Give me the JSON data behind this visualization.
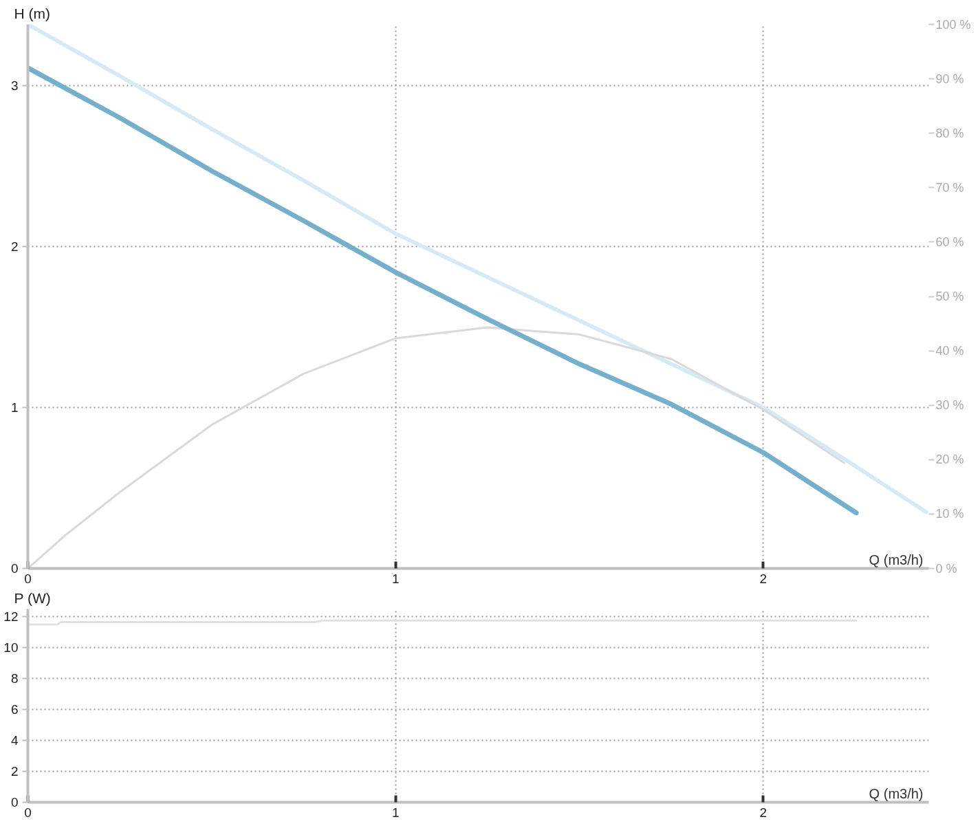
{
  "chart_data": [
    {
      "type": "line",
      "xlabel": "Q (m3/h)",
      "ylabel": "H (m)",
      "xlim": [
        0,
        2.45
      ],
      "xticks": [
        0,
        1,
        2
      ],
      "ylim": [
        0,
        3.38
      ],
      "yticks": [
        0,
        1,
        2,
        3
      ],
      "y2lim": [
        0,
        100
      ],
      "y2ticks": [
        {
          "value": 0,
          "label": "0 %"
        },
        {
          "value": 10,
          "label": "10 %"
        },
        {
          "value": 20,
          "label": "20 %"
        },
        {
          "value": 30,
          "label": "30 %"
        },
        {
          "value": 40,
          "label": "40 %"
        },
        {
          "value": 50,
          "label": "50 %"
        },
        {
          "value": 60,
          "label": "60 %"
        },
        {
          "value": 70,
          "label": "70 %"
        },
        {
          "value": 80,
          "label": "80 %"
        },
        {
          "value": 90,
          "label": "90 %"
        },
        {
          "value": 100,
          "label": "100 %"
        }
      ],
      "grid": true,
      "marker": "none",
      "series": [
        {
          "color": "#d6eaf5",
          "line_style": "dotted",
          "x": [
            0,
            0.25,
            0.5,
            0.75,
            1,
            1.25,
            1.5,
            1.75,
            2,
            2.2,
            2.443
          ],
          "values": [
            3.38,
            3.06,
            2.73,
            2.41,
            2.08,
            1.81,
            1.54,
            1.27,
            1.0,
            0.71,
            0.35
          ]
        },
        {
          "color": "#d9d9d9",
          "line_style": "solid",
          "axis": "y2",
          "x": [
            0,
            0.1,
            0.25,
            0.5,
            0.75,
            1,
            1.25,
            1.5,
            1.75,
            2,
            2.22
          ],
          "values": [
            0,
            6,
            14,
            26.4,
            35.8,
            42.3,
            44.3,
            43,
            38.5,
            29.2,
            19.4
          ]
        },
        {
          "color": "#74b0cb",
          "line_style": "solid",
          "x": [
            0,
            0.25,
            0.5,
            0.75,
            1,
            1.25,
            1.5,
            1.75,
            2,
            2.253
          ],
          "values": [
            3.11,
            2.8,
            2.47,
            2.16,
            1.84,
            1.55,
            1.27,
            1.02,
            0.72,
            0.345
          ]
        }
      ]
    },
    {
      "type": "line",
      "xlabel": "Q (m3/h)",
      "ylabel": "P (W)",
      "xlim": [
        0,
        2.45
      ],
      "xticks": [
        0,
        1,
        2
      ],
      "ylim": [
        0,
        12.5
      ],
      "yticks": [
        0,
        2,
        4,
        6,
        8,
        10,
        12
      ],
      "grid": true,
      "marker": "none",
      "series": [
        {
          "color": "#e0e0e0",
          "line_style": "solid",
          "x": [
            0,
            0.08,
            0.09,
            0.78,
            0.8,
            2.253
          ],
          "values": [
            11.5,
            11.5,
            11.65,
            11.65,
            11.75,
            11.75
          ]
        }
      ]
    }
  ]
}
